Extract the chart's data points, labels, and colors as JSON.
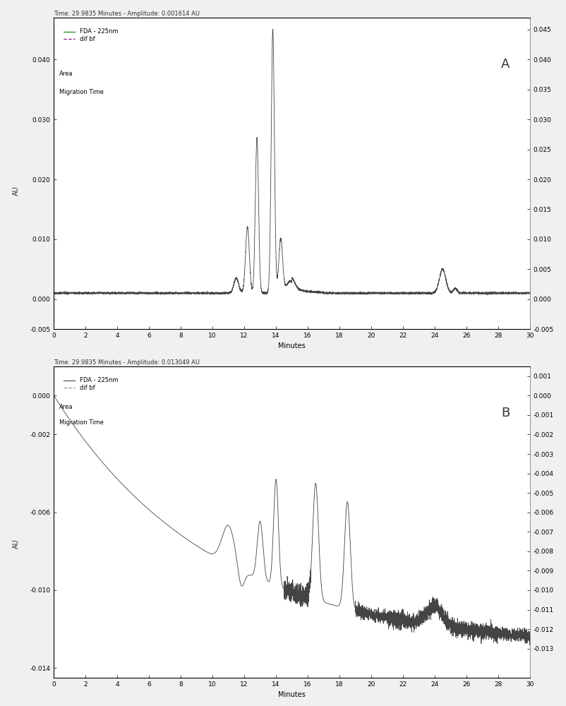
{
  "panel_A": {
    "title": "Time: 29.9835 Minutes - Amplitude: 0.001614 AU",
    "legend_lines": [
      "FDA - 225nm",
      "dif bf",
      "Area",
      "Migration Time"
    ],
    "xlabel": "Minutes",
    "ylabel": "AU",
    "xlim": [
      0,
      30
    ],
    "ylim": [
      -0.005,
      0.047
    ],
    "yticks_left": [
      -0.005,
      0.0,
      0.01,
      0.02,
      0.03,
      0.04
    ],
    "yticks_right": [
      -0.005,
      0.0,
      0.005,
      0.01,
      0.015,
      0.02,
      0.025,
      0.03,
      0.035,
      0.04,
      0.045
    ],
    "xticks": [
      0,
      2,
      4,
      6,
      8,
      10,
      12,
      14,
      16,
      18,
      20,
      22,
      24,
      26,
      28,
      30
    ],
    "label": "A",
    "baseline": 0.001,
    "line_color": "#444444",
    "background_color": "#ffffff"
  },
  "panel_B": {
    "title": "Time: 29.9835 Minutes - Amplitude: 0.013049 AU",
    "legend_lines": [
      "FDA - 225nm",
      "dif bf",
      "Area",
      "Migration Time"
    ],
    "xlabel": "Minutes",
    "ylabel": "AU",
    "xlim": [
      0,
      30
    ],
    "ylim": [
      -0.0145,
      0.0015
    ],
    "yticks_left": [
      -0.014,
      -0.01,
      -0.006,
      -0.002,
      0.0
    ],
    "yticks_right": [
      -0.013,
      -0.012,
      -0.011,
      -0.01,
      -0.009,
      -0.008,
      -0.007,
      -0.006,
      -0.005,
      -0.004,
      -0.003,
      -0.002,
      -0.001,
      0.0,
      0.001
    ],
    "xticks": [
      0,
      2,
      4,
      6,
      8,
      10,
      12,
      14,
      16,
      18,
      20,
      22,
      24,
      26,
      28,
      30
    ],
    "label": "B",
    "line_color": "#444444",
    "background_color": "#ffffff"
  }
}
